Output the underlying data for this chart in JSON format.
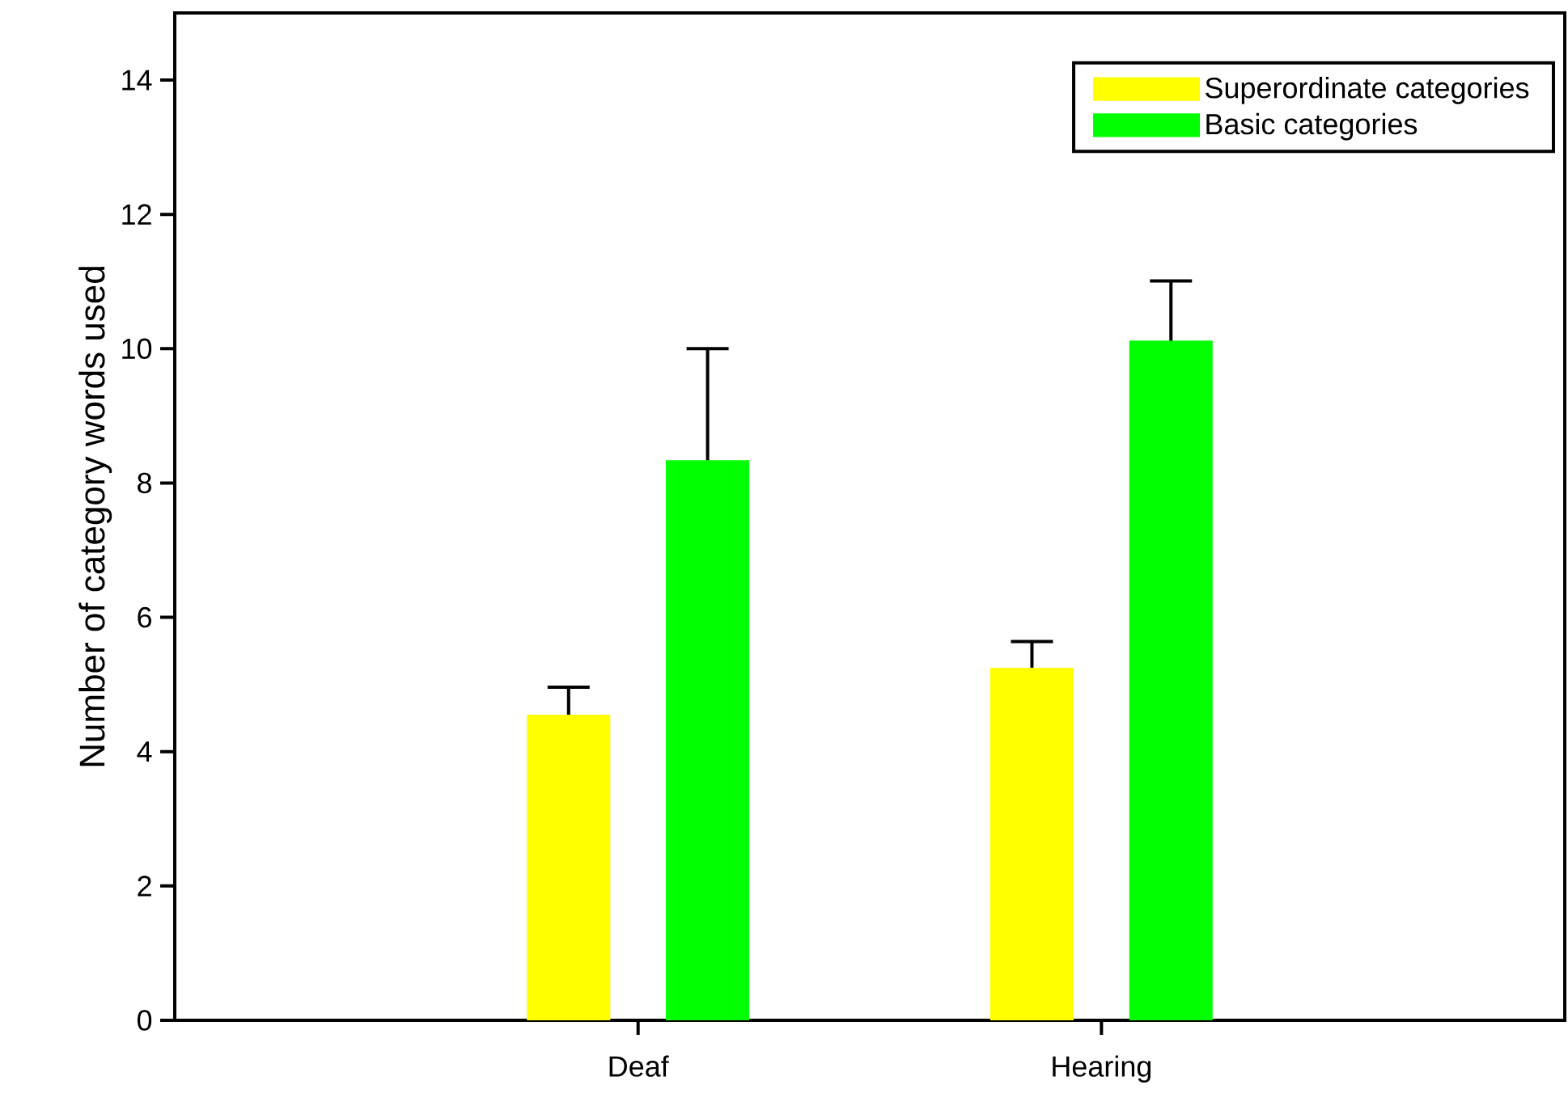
{
  "chart_data": {
    "type": "bar",
    "ylabel": "Number of category words used",
    "categories": [
      "Deaf",
      "Hearing"
    ],
    "series": [
      {
        "name": "Superordinate categories",
        "color": "#ffff00",
        "values": [
          4.55,
          5.25
        ],
        "errors": [
          [
            4.55,
            4.96
          ],
          [
            5.25,
            5.64
          ]
        ]
      },
      {
        "name": "Basic categories",
        "color": "#00ff00",
        "values": [
          8.34,
          10.12
        ],
        "errors": [
          [
            8.34,
            10.0
          ],
          [
            10.12,
            11.01
          ]
        ]
      }
    ],
    "ylim": [
      0,
      15
    ],
    "yticks": [
      0,
      2,
      4,
      6,
      8,
      10,
      12,
      14
    ],
    "legend": "top right",
    "grid": false
  }
}
